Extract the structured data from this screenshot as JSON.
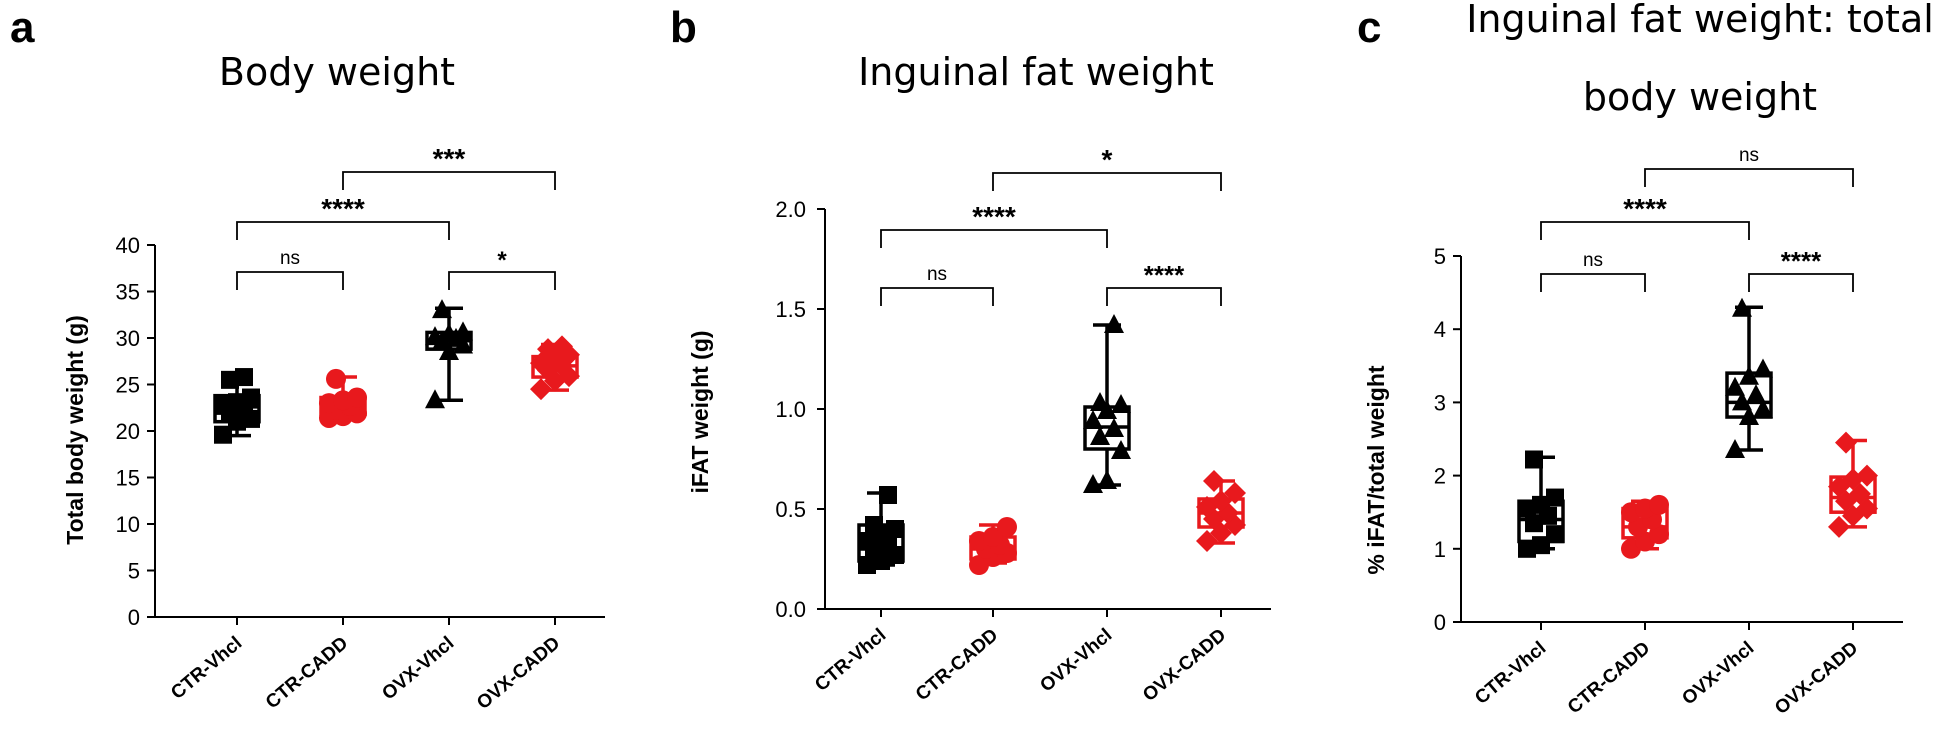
{
  "colors": {
    "control": "#000000",
    "cadd": "#e8191d"
  },
  "chart_data": [
    {
      "type": "box",
      "panel": "a",
      "title": "Body weight",
      "ylabel": "Total body weight (g)",
      "ylim": [
        0,
        40
      ],
      "yticks": [
        0,
        5,
        10,
        15,
        20,
        25,
        30,
        35,
        40
      ],
      "categories": [
        "CTR-Vhcl",
        "CTR-CADD",
        "OVX-Vhcl",
        "OVX-CADD"
      ],
      "series": [
        {
          "category": "CTR-Vhcl",
          "color": "black",
          "marker": "square",
          "min": 19.5,
          "q1": 21.0,
          "median": 22.6,
          "q3": 23.8,
          "max": 25.8,
          "points": [
            19.6,
            21.0,
            21.3,
            22.0,
            22.3,
            22.7,
            23.1,
            23.6,
            25.5,
            25.8
          ]
        },
        {
          "category": "CTR-CADD",
          "color": "red",
          "marker": "circle",
          "min": 21.3,
          "q1": 21.8,
          "median": 22.7,
          "q3": 23.6,
          "max": 25.8,
          "points": [
            21.4,
            21.6,
            21.9,
            22.3,
            22.7,
            23.0,
            23.3,
            23.6,
            25.6
          ]
        },
        {
          "category": "OVX-Vhcl",
          "color": "black",
          "marker": "triangle",
          "min": 23.3,
          "q1": 28.8,
          "median": 29.7,
          "q3": 30.6,
          "max": 33.2,
          "points": [
            23.3,
            28.5,
            29.2,
            29.6,
            29.9,
            30.1,
            30.4,
            30.6,
            33.0
          ]
        },
        {
          "category": "OVX-CADD",
          "color": "red",
          "marker": "diamond",
          "min": 24.4,
          "q1": 25.8,
          "median": 27.0,
          "q3": 28.0,
          "max": 29.3,
          "points": [
            24.5,
            25.4,
            25.9,
            26.5,
            27.0,
            27.3,
            27.7,
            28.2,
            28.8,
            29.1
          ]
        }
      ],
      "comparisons": [
        {
          "from": "CTR-Vhcl",
          "to": "CTR-CADD",
          "label": "ns",
          "level": 1
        },
        {
          "from": "OVX-Vhcl",
          "to": "OVX-CADD",
          "label": "*",
          "level": 1
        },
        {
          "from": "CTR-Vhcl",
          "to": "OVX-Vhcl",
          "label": "****",
          "level": 2
        },
        {
          "from": "CTR-CADD",
          "to": "OVX-CADD",
          "label": "***",
          "level": 3
        }
      ]
    },
    {
      "type": "box",
      "panel": "b",
      "title": "Inguinal fat weight",
      "ylabel": "iFAT weight (g)",
      "ylim": [
        0,
        2
      ],
      "yticks": [
        "0.0",
        "0.5",
        "1.0",
        "1.5",
        "2.0"
      ],
      "categories": [
        "CTR-Vhcl",
        "CTR-CADD",
        "OVX-Vhcl",
        "OVX-CADD"
      ],
      "series": [
        {
          "category": "CTR-Vhcl",
          "color": "black",
          "marker": "square",
          "min": 0.22,
          "q1": 0.24,
          "median": 0.3,
          "q3": 0.42,
          "max": 0.58,
          "points": [
            0.22,
            0.24,
            0.27,
            0.29,
            0.31,
            0.34,
            0.38,
            0.4,
            0.42,
            0.57
          ]
        },
        {
          "category": "CTR-CADD",
          "color": "red",
          "marker": "circle",
          "min": 0.23,
          "q1": 0.25,
          "median": 0.3,
          "q3": 0.36,
          "max": 0.42,
          "points": [
            0.22,
            0.26,
            0.28,
            0.3,
            0.32,
            0.34,
            0.36,
            0.41
          ]
        },
        {
          "category": "OVX-Vhcl",
          "color": "black",
          "marker": "triangle",
          "min": 0.62,
          "q1": 0.8,
          "median": 0.91,
          "q3": 1.01,
          "max": 1.42,
          "points": [
            0.62,
            0.64,
            0.79,
            0.86,
            0.9,
            0.94,
            0.99,
            1.02,
            1.03,
            1.42
          ]
        },
        {
          "category": "OVX-CADD",
          "color": "red",
          "marker": "diamond",
          "min": 0.33,
          "q1": 0.41,
          "median": 0.48,
          "q3": 0.55,
          "max": 0.64,
          "points": [
            0.34,
            0.38,
            0.42,
            0.45,
            0.48,
            0.51,
            0.54,
            0.58,
            0.64
          ]
        }
      ],
      "comparisons": [
        {
          "from": "CTR-Vhcl",
          "to": "CTR-CADD",
          "label": "ns",
          "level": 1
        },
        {
          "from": "OVX-Vhcl",
          "to": "OVX-CADD",
          "label": "****",
          "level": 1
        },
        {
          "from": "CTR-Vhcl",
          "to": "OVX-Vhcl",
          "label": "****",
          "level": 2
        },
        {
          "from": "CTR-CADD",
          "to": "OVX-CADD",
          "label": "*",
          "level": 3
        }
      ]
    },
    {
      "type": "box",
      "panel": "c",
      "title": "Inguinal fat weight: total",
      "title_line2": "body weight",
      "ylabel": "% iFAT/total weight",
      "ylim": [
        0,
        5
      ],
      "yticks": [
        0,
        1,
        2,
        3,
        4,
        5
      ],
      "categories": [
        "CTR-Vhcl",
        "CTR-CADD",
        "OVX-Vhcl",
        "OVX-CADD"
      ],
      "series": [
        {
          "category": "CTR-Vhcl",
          "color": "black",
          "marker": "square",
          "min": 1.0,
          "q1": 1.1,
          "median": 1.4,
          "q3": 1.65,
          "max": 2.25,
          "points": [
            1.0,
            1.05,
            1.2,
            1.35,
            1.45,
            1.55,
            1.6,
            1.7,
            2.22
          ]
        },
        {
          "category": "CTR-CADD",
          "color": "red",
          "marker": "circle",
          "min": 1.0,
          "q1": 1.15,
          "median": 1.3,
          "q3": 1.55,
          "max": 1.65,
          "points": [
            1.0,
            1.1,
            1.2,
            1.3,
            1.4,
            1.5,
            1.55,
            1.6
          ]
        },
        {
          "category": "OVX-Vhcl",
          "color": "black",
          "marker": "triangle",
          "min": 2.35,
          "q1": 2.8,
          "median": 3.0,
          "q3": 3.4,
          "max": 4.3,
          "points": [
            2.35,
            2.8,
            2.9,
            3.0,
            3.1,
            3.2,
            3.35,
            3.45,
            4.28
          ]
        },
        {
          "category": "OVX-CADD",
          "color": "red",
          "marker": "diamond",
          "min": 1.3,
          "q1": 1.5,
          "median": 1.7,
          "q3": 1.98,
          "max": 2.48,
          "points": [
            1.3,
            1.45,
            1.55,
            1.65,
            1.75,
            1.85,
            1.95,
            2.0,
            2.45
          ]
        }
      ],
      "comparisons": [
        {
          "from": "CTR-Vhcl",
          "to": "CTR-CADD",
          "label": "ns",
          "level": 1
        },
        {
          "from": "OVX-Vhcl",
          "to": "OVX-CADD",
          "label": "****",
          "level": 1
        },
        {
          "from": "CTR-Vhcl",
          "to": "OVX-Vhcl",
          "label": "****",
          "level": 2
        },
        {
          "from": "CTR-CADD",
          "to": "OVX-CADD",
          "label": "ns",
          "level": 3
        }
      ]
    }
  ]
}
